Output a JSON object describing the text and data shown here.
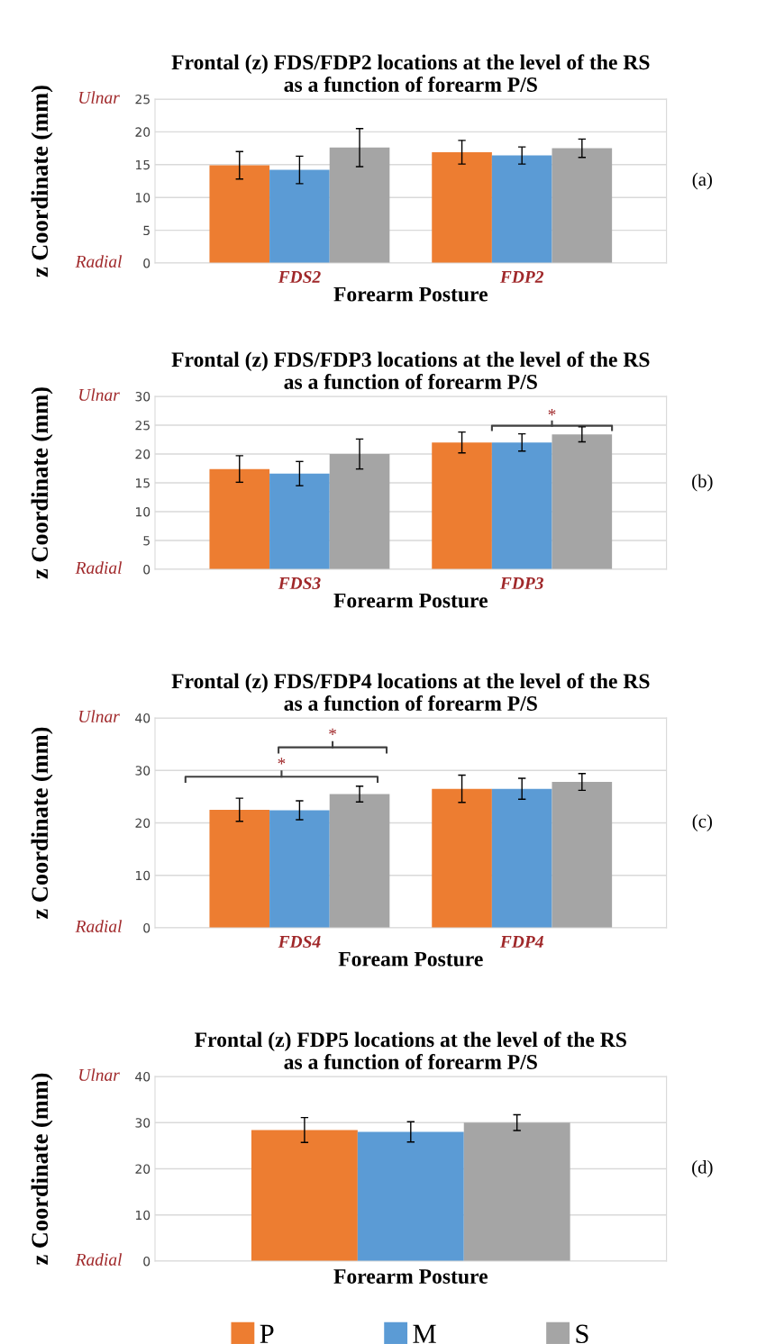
{
  "chart_data": [
    {
      "type": "bar",
      "title": "Frontal (z) FDS/FDP2 locations at the level of the RS\nas a function of forearm P/S",
      "xlabel": "Forearm Posture",
      "ylabel": "z Coordinate (mm)",
      "categories": [
        "FDS2",
        "FDP2"
      ],
      "series": [
        {
          "color": "#ed7d31",
          "values": [
            14.9,
            16.9
          ],
          "errors": [
            2.1,
            1.8
          ]
        },
        {
          "color": "#5b9bd5",
          "values": [
            14.2,
            16.4
          ],
          "errors": [
            2.1,
            1.3
          ]
        },
        {
          "color": "#a5a5a5",
          "values": [
            17.6,
            17.5
          ],
          "errors": [
            2.9,
            1.4
          ]
        }
      ],
      "ylim": [
        0,
        25
      ],
      "yticks": [
        0,
        5,
        10,
        15,
        20,
        25
      ],
      "grid": "y",
      "legend": false,
      "annotations": [
        "Ulnar",
        "Radial",
        "(a)"
      ]
    },
    {
      "type": "bar",
      "title": "Frontal (z) FDS/FDP3 locations at the level of the RS\nas a function of forearm P/S",
      "xlabel": "Forearm Posture",
      "ylabel": "z Coordinate (mm)",
      "categories": [
        "FDS3",
        "FDP3"
      ],
      "series": [
        {
          "color": "#ed7d31",
          "values": [
            17.4,
            22.0
          ],
          "errors": [
            2.3,
            1.8
          ]
        },
        {
          "color": "#5b9bd5",
          "values": [
            16.6,
            22.0
          ],
          "errors": [
            2.1,
            1.5
          ]
        },
        {
          "color": "#a5a5a5",
          "values": [
            20.0,
            23.4
          ],
          "errors": [
            2.6,
            1.3
          ]
        }
      ],
      "ylim": [
        0,
        30
      ],
      "yticks": [
        0,
        5,
        10,
        15,
        20,
        25,
        30
      ],
      "grid": "y",
      "legend": false,
      "annotations": [
        "Ulnar",
        "Radial",
        "(b)",
        "*"
      ]
    },
    {
      "type": "bar",
      "title": "Frontal (z) FDS/FDP4 locations at the level of the RS\nas a function of forearm P/S",
      "xlabel": "Foream Posture",
      "ylabel": "z Coordinate (mm)",
      "categories": [
        "FDS4",
        "FDP4"
      ],
      "series": [
        {
          "color": "#ed7d31",
          "values": [
            22.5,
            26.5
          ],
          "errors": [
            2.2,
            2.6
          ]
        },
        {
          "color": "#5b9bd5",
          "values": [
            22.4,
            26.5
          ],
          "errors": [
            1.8,
            2.0
          ]
        },
        {
          "color": "#a5a5a5",
          "values": [
            25.5,
            27.8
          ],
          "errors": [
            1.5,
            1.6
          ]
        }
      ],
      "ylim": [
        0,
        40
      ],
      "yticks": [
        0,
        10,
        20,
        30,
        40
      ],
      "grid": "y",
      "legend": false,
      "annotations": [
        "Ulnar",
        "Radial",
        "(c)",
        "*",
        "*"
      ]
    },
    {
      "type": "bar",
      "title": "Frontal (z) FDP5 locations at the level of the RS\nas a function of forearm P/S",
      "xlabel": "Forearm Posture",
      "ylabel": "z Coordinate (mm)",
      "categories": [
        null
      ],
      "series": [
        {
          "name": "P",
          "color": "#ed7d31",
          "values": [
            28.4
          ],
          "errors": [
            2.7
          ]
        },
        {
          "name": "M",
          "color": "#5b9bd5",
          "values": [
            28.0
          ],
          "errors": [
            2.2
          ]
        },
        {
          "name": "S",
          "color": "#a5a5a5",
          "values": [
            30.0
          ],
          "errors": [
            1.7
          ]
        }
      ],
      "ylim": [
        0,
        40
      ],
      "yticks": [
        0,
        10,
        20,
        30,
        40
      ],
      "grid": "y",
      "legend": "bottom",
      "annotations": [
        "Ulnar",
        "Radial",
        "(d)"
      ]
    }
  ]
}
